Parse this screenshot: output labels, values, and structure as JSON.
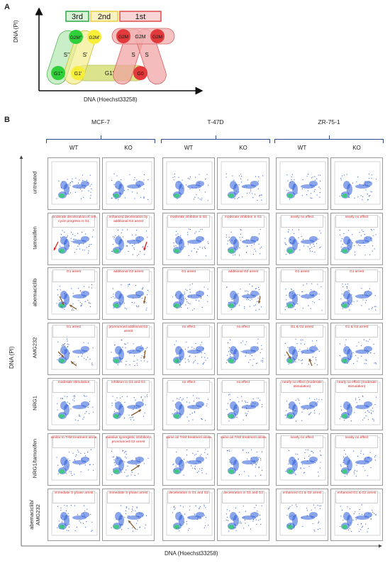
{
  "panel_a": {
    "letter": "A",
    "y_axis": "DNA (PI)",
    "x_axis": "DNA (Hoechst33258)",
    "cycle_labels": [
      {
        "text": "3rd",
        "color": "#29a846"
      },
      {
        "text": "2nd",
        "color": "#e6cf3a"
      },
      {
        "text": "1st",
        "color": "#e04a4a"
      }
    ],
    "phases": {
      "g2m2": "G2M''",
      "g2m1": "G2M'",
      "g2m": "G2M",
      "s2": "S''",
      "s1": "S'",
      "s": "S",
      "g1_2": "G1''",
      "g1_1": "G1'",
      "g1_band": "G1'",
      "g0": "G0"
    }
  },
  "panel_b": {
    "letter": "B",
    "y_axis": "DNA (PI)",
    "x_axis": "DNA (Hoechst33258)",
    "cell_lines": [
      "MCF-7",
      "T-47D",
      "ZR-75-1"
    ],
    "genotypes": [
      "WT",
      "KO",
      "WT",
      "KO",
      "WT",
      "KO"
    ],
    "treatments": [
      "untreated",
      "tamoxifen",
      "abemaciclib",
      "AMG232",
      "NRG1",
      "NRG1/tamoxifen",
      "abemaciclib/\nAMG232"
    ],
    "annotations": [
      [
        "",
        "",
        "",
        "",
        "",
        ""
      ],
      [
        "moderate deceleration of cell cycle progress in G1",
        "enhanced deceleration by additional G2 arrest",
        "moderate inhibiton in G1",
        "moderate inhibiton in G1",
        "nearly no effect",
        "nearly no effect"
      ],
      [
        "G1 arrest",
        "additional G2 arrest",
        "G1 arrest",
        "additional G2 arrest",
        "G1 arrest",
        "G1 arrest"
      ],
      [
        "G1 arrest",
        "pronounced additional G2 arrest",
        "no effect",
        "no effect",
        "G1 & G2 arrest",
        "G1 & G2 arrest"
      ],
      [
        "moderate stimulation",
        "inhibiton in G1 and G2",
        "no effect",
        "no effect",
        "nearly no effect (moderate stimulation)",
        "nearly no effect (moderate stimulation)"
      ],
      [
        "similar to TAM treatment alone",
        "massive synergistic inhibition / pronounced G2 arrest",
        "same as TAM treatment alone",
        "same as TAM treatment alone",
        "nearly no effect",
        "nearly no effect"
      ],
      [
        "immediate S-phase arrest",
        "immediate S-phase arrest",
        "deceleration in G1 and G2",
        "deceleration in G1 and G2",
        "enhanced G1 & G2 arrest",
        "enhanced G1 & G2 arrest"
      ]
    ],
    "colors": {
      "annotation": "#d32020",
      "bracket": "#2f4d8a",
      "arrow": "#8a5a2b",
      "arrow_red": "#e02020"
    }
  }
}
